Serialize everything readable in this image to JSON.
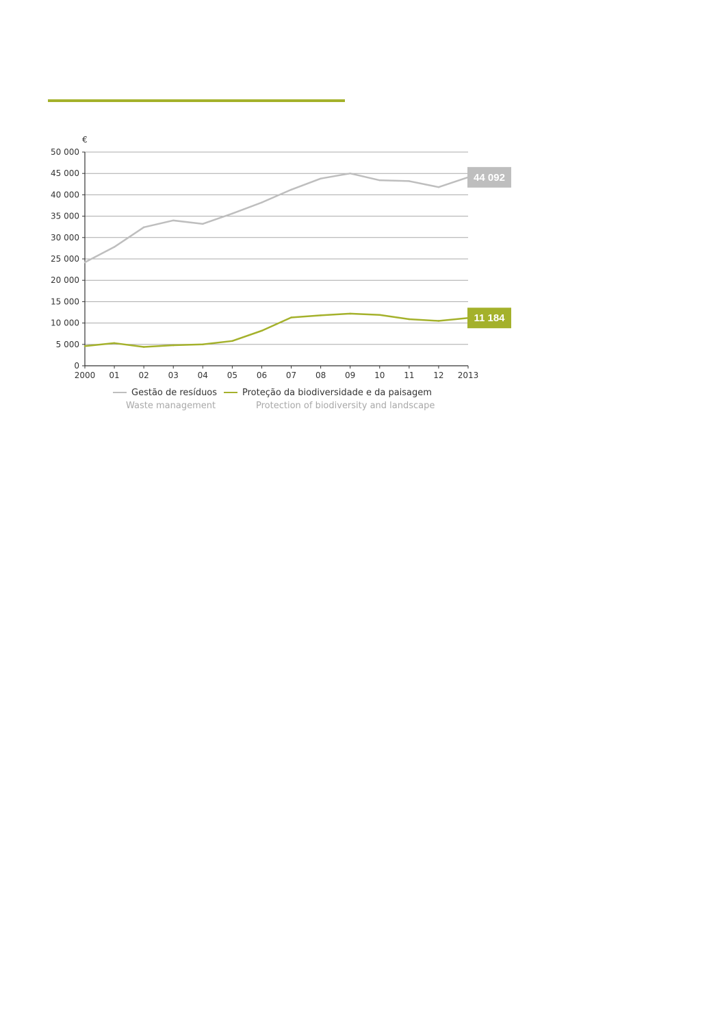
{
  "colors": {
    "accent": "#a4b12b",
    "waste": "#bebebe",
    "biodiversity": "#a4b12b",
    "grid": "#a8a8a8",
    "axis": "#333333"
  },
  "chart_data": {
    "type": "line",
    "unit_label": "€",
    "x": [
      "2000",
      "01",
      "02",
      "03",
      "04",
      "05",
      "06",
      "07",
      "08",
      "09",
      "10",
      "11",
      "12",
      "2013"
    ],
    "ylim": [
      0,
      50000
    ],
    "yticks": [
      0,
      5000,
      10000,
      15000,
      20000,
      25000,
      30000,
      35000,
      40000,
      45000,
      50000
    ],
    "ytick_labels": [
      "0",
      "5 000",
      "10 000",
      "15 000",
      "20 000",
      "25 000",
      "30 000",
      "35 000",
      "40 000",
      "45 000",
      "50 000"
    ],
    "grid": true,
    "series": [
      {
        "key": "waste",
        "name": "Gestão de resíduos",
        "name_en": "Waste management",
        "color": "#bebebe",
        "values": [
          24200,
          27800,
          32400,
          34000,
          33200,
          35600,
          38200,
          41200,
          43800,
          45000,
          43400,
          43200,
          41800,
          44092
        ],
        "end_label": "44 092"
      },
      {
        "key": "biodiversity",
        "name": "Proteção da biodiversidade e da paisagem",
        "name_en": "Protection of biodiversity and landscape",
        "color": "#a4b12b",
        "values": [
          4600,
          5300,
          4400,
          4800,
          5000,
          5800,
          8200,
          11300,
          11800,
          12200,
          11900,
          10900,
          10500,
          11184
        ],
        "end_label": "11 184"
      }
    ],
    "legend_position": "bottom"
  }
}
